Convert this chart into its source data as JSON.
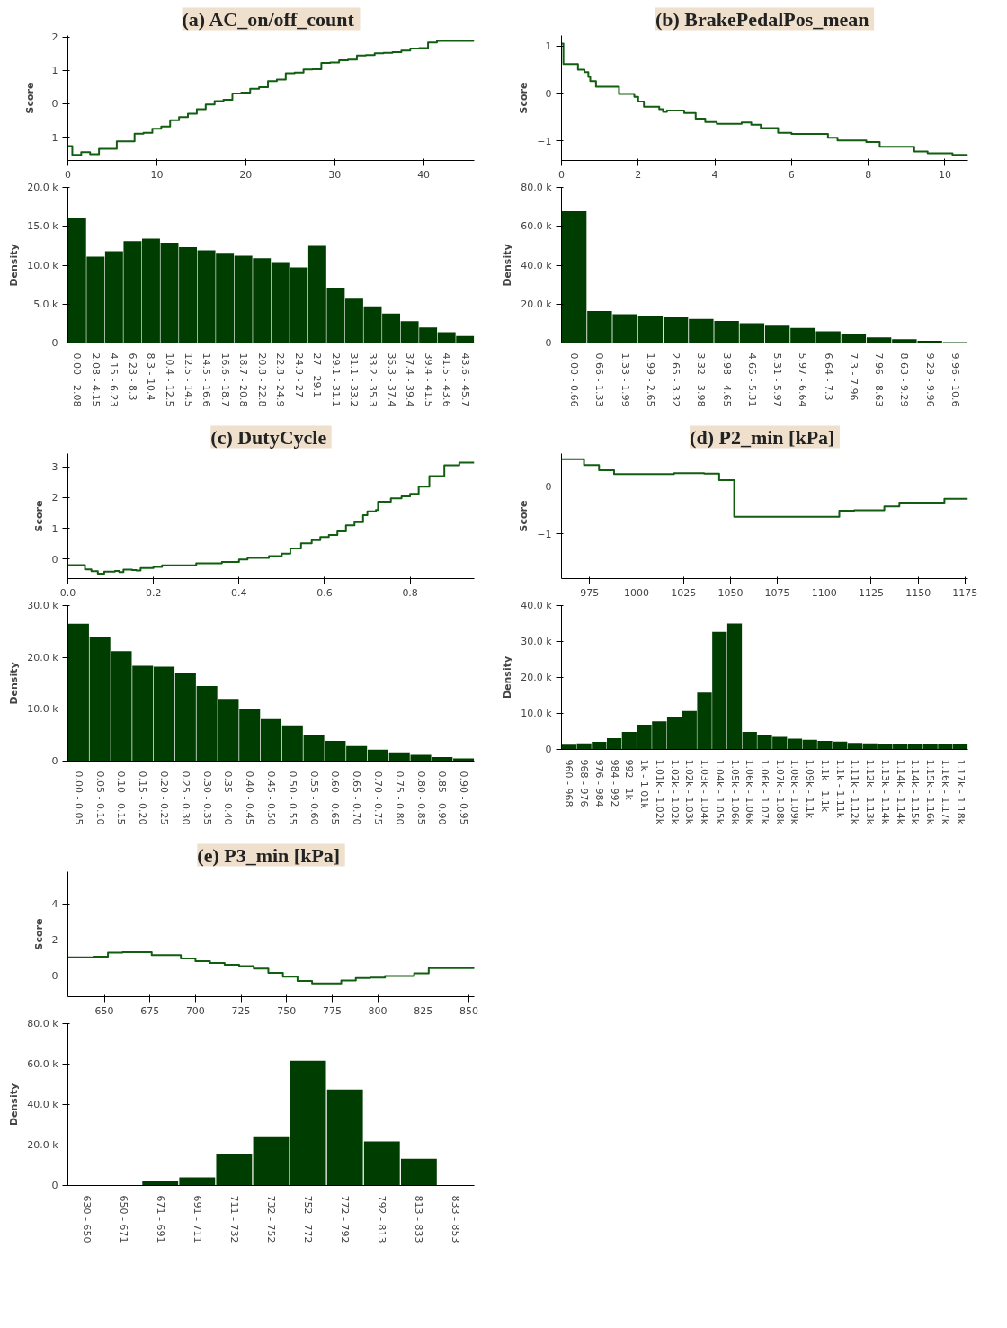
{
  "chart_data": [
    {
      "type": "step",
      "title": "(a)  AC_on/off_count",
      "ylabel": "Score",
      "color": "#115e11",
      "xlim": [
        0,
        45.7
      ],
      "xticks": [
        0,
        10,
        20,
        30,
        40
      ],
      "ylim": [
        -1.7,
        2.05
      ],
      "yticks": [
        {
          "value": -1,
          "label": "−1"
        },
        0,
        1,
        2
      ],
      "x": [
        0,
        0.5,
        1.5,
        2.5,
        3.5,
        5.5,
        7.5,
        8.5,
        9.5,
        10.5,
        11.5,
        12.5,
        13.5,
        14.5,
        15.5,
        16.5,
        17.5,
        18.5,
        19.5,
        20.5,
        21.5,
        22.5,
        23.5,
        24.5,
        25.5,
        26.5,
        27.5,
        28.5,
        29.5,
        30.5,
        31.5,
        32.5,
        33.5,
        34.5,
        35.5,
        36.5,
        37.5,
        38.5,
        39.5,
        40.5,
        41.5,
        45.7
      ],
      "values": [
        -1.27,
        -1.53,
        -1.45,
        -1.51,
        -1.35,
        -1.13,
        -0.9,
        -0.87,
        -0.75,
        -0.68,
        -0.49,
        -0.4,
        -0.3,
        -0.16,
        -0.02,
        0.08,
        0.12,
        0.31,
        0.34,
        0.45,
        0.5,
        0.68,
        0.73,
        0.92,
        0.94,
        1.03,
        1.04,
        1.23,
        1.24,
        1.31,
        1.33,
        1.45,
        1.46,
        1.52,
        1.53,
        1.55,
        1.6,
        1.66,
        1.67,
        1.84,
        1.89,
        1.89
      ]
    },
    {
      "type": "bar",
      "ylabel": "Density",
      "color": "#003d00",
      "ylim": [
        0,
        20000
      ],
      "yticks": [
        0,
        {
          "value": 5000,
          "label": "5.0 k"
        },
        {
          "value": 10000,
          "label": "10.0 k"
        },
        {
          "value": 15000,
          "label": "15.0 k"
        },
        {
          "value": 20000,
          "label": "20.0 k"
        }
      ],
      "categories": [
        "0.00 - 2.08",
        "2.08 - 4.15",
        "4.15 - 6.23",
        "6.23 - 8.3",
        "8.3 - 10.4",
        "10.4 - 12.5",
        "12.5 - 14.5",
        "14.5 - 16.6",
        "16.6 - 18.7",
        "18.7 - 20.8",
        "20.8 - 22.8",
        "22.8 - 24.9",
        "24.9 - 27",
        "27 - 29.1",
        "29.1 - 31.1",
        "31.1 - 33.2",
        "33.2 - 35.3",
        "35.3 - 37.4",
        "37.4 - 39.4",
        "39.4 - 41.5",
        "41.5 - 43.6",
        "43.6 - 45.7"
      ],
      "values": [
        16100,
        11100,
        11800,
        13100,
        13400,
        12900,
        12300,
        11900,
        11600,
        11200,
        10900,
        10400,
        9700,
        12500,
        7100,
        5800,
        4700,
        3800,
        2800,
        2000,
        1400,
        900
      ]
    },
    {
      "type": "step",
      "title": "(b)  BrakePedalPos_mean",
      "ylabel": "Score",
      "color": "#115e11",
      "xlim": [
        0,
        10.6
      ],
      "xticks": [
        0,
        2,
        4,
        6,
        8,
        10
      ],
      "ylim": [
        -1.41,
        1.22
      ],
      "yticks": [
        {
          "value": -1,
          "label": "−1"
        },
        0,
        1
      ],
      "x": [
        0,
        0.05,
        0.43,
        0.6,
        0.7,
        0.75,
        0.9,
        1.5,
        1.9,
        2.0,
        2.15,
        2.55,
        2.65,
        2.75,
        3.2,
        3.5,
        3.75,
        4.05,
        4.7,
        4.95,
        5.2,
        5.65,
        6.0,
        6.95,
        7.2,
        7.95,
        8.3,
        9.2,
        9.55,
        10.2,
        10.6
      ],
      "values": [
        1.05,
        0.62,
        0.5,
        0.45,
        0.35,
        0.26,
        0.14,
        -0.01,
        -0.07,
        -0.17,
        -0.28,
        -0.33,
        -0.39,
        -0.36,
        -0.41,
        -0.53,
        -0.6,
        -0.64,
        -0.61,
        -0.66,
        -0.73,
        -0.83,
        -0.85,
        -0.93,
        -0.99,
        -1.02,
        -1.12,
        -1.22,
        -1.26,
        -1.29,
        -1.29
      ]
    },
    {
      "type": "bar",
      "ylabel": "Density",
      "color": "#003d00",
      "ylim": [
        0,
        80000
      ],
      "yticks": [
        0,
        {
          "value": 20000,
          "label": "20.0 k"
        },
        {
          "value": 40000,
          "label": "40.0 k"
        },
        {
          "value": 60000,
          "label": "60.0 k"
        },
        {
          "value": 80000,
          "label": "80.0 k"
        }
      ],
      "categories": [
        "0.00 - 0.66",
        "0.66 - 1.33",
        "1.33 - 1.99",
        "1.99 - 2.65",
        "2.65 - 3.32",
        "3.32 - 3.98",
        "3.98 - 4.65",
        "4.65 - 5.31",
        "5.31 - 5.97",
        "5.97 - 6.64",
        "6.64 - 7.3",
        "7.3 - 7.96",
        "7.96 - 8.63",
        "8.63 - 9.29",
        "9.29 - 9.96",
        "9.96 - 10.6"
      ],
      "values": [
        67800,
        16400,
        14800,
        14100,
        13200,
        12400,
        11300,
        10200,
        8900,
        7700,
        6000,
        4400,
        2900,
        2000,
        1100,
        500
      ]
    },
    {
      "type": "step",
      "title": "(c)  DutyCycle",
      "ylabel": "Score",
      "color": "#115e11",
      "xlim": [
        0,
        0.95
      ],
      "xticks": [
        {
          "value": 0,
          "label": "0.0"
        },
        0.2,
        0.4,
        0.6,
        0.8
      ],
      "ylim": [
        -0.63,
        3.43
      ],
      "yticks": [
        0,
        1,
        2,
        3
      ],
      "x": [
        0,
        0.04,
        0.055,
        0.07,
        0.085,
        0.11,
        0.12,
        0.13,
        0.15,
        0.16,
        0.17,
        0.2,
        0.22,
        0.3,
        0.36,
        0.4,
        0.42,
        0.47,
        0.5,
        0.52,
        0.545,
        0.57,
        0.59,
        0.61,
        0.63,
        0.65,
        0.67,
        0.69,
        0.7,
        0.72,
        0.725,
        0.755,
        0.78,
        0.8,
        0.82,
        0.845,
        0.88,
        0.915,
        0.95
      ],
      "values": [
        -0.19,
        -0.33,
        -0.39,
        -0.47,
        -0.4,
        -0.38,
        -0.42,
        -0.34,
        -0.35,
        -0.37,
        -0.29,
        -0.25,
        -0.2,
        -0.13,
        -0.09,
        -0.01,
        0.04,
        0.1,
        0.18,
        0.35,
        0.52,
        0.62,
        0.72,
        0.79,
        0.9,
        1.1,
        1.2,
        1.43,
        1.55,
        1.6,
        1.87,
        1.98,
        2.04,
        2.12,
        2.36,
        2.7,
        3.05,
        3.14,
        3.14
      ]
    },
    {
      "type": "bar",
      "ylabel": "Density",
      "color": "#003d00",
      "ylim": [
        0,
        30000
      ],
      "yticks": [
        0,
        {
          "value": 10000,
          "label": "10.0 k"
        },
        {
          "value": 20000,
          "label": "20.0 k"
        },
        {
          "value": 30000,
          "label": "30.0 k"
        }
      ],
      "categories": [
        "0.00 - 0.05",
        "0.05 - 0.10",
        "0.10 - 0.15",
        "0.15 - 0.20",
        "0.20 - 0.25",
        "0.25 - 0.30",
        "0.30 - 0.35",
        "0.35 - 0.40",
        "0.40 - 0.45",
        "0.45 - 0.50",
        "0.50 - 0.55",
        "0.55 - 0.60",
        "0.60 - 0.65",
        "0.65 - 0.70",
        "0.70 - 0.75",
        "0.75 - 0.80",
        "0.80 - 0.85",
        "0.85 - 0.90",
        "0.90 - 0.95"
      ],
      "values": [
        26500,
        24000,
        21200,
        18400,
        18200,
        17000,
        14500,
        12000,
        10000,
        8100,
        6900,
        5100,
        3900,
        2900,
        2200,
        1700,
        1200,
        800,
        500
      ]
    },
    {
      "type": "step",
      "title": "(d)  P2_min [kPa]",
      "ylabel": "Score",
      "color": "#115e11",
      "xlim": [
        960,
        1176.5
      ],
      "xticks": [
        975,
        1000,
        1025,
        1050,
        1075,
        1100,
        1125,
        1150,
        1175
      ],
      "ylim": [
        -1.94,
        0.69
      ],
      "yticks": [
        {
          "value": -1,
          "label": "−1"
        },
        0
      ],
      "x": [
        960,
        972,
        980,
        988,
        1020,
        1036,
        1044,
        1052,
        1108,
        1116,
        1132,
        1140,
        1164,
        1176.5
      ],
      "values": [
        0.57,
        0.45,
        0.34,
        0.26,
        0.28,
        0.27,
        0.13,
        -0.64,
        -0.51,
        -0.5,
        -0.42,
        -0.34,
        -0.26,
        -0.26
      ]
    },
    {
      "type": "bar",
      "ylabel": "Density",
      "color": "#003d00",
      "ylim": [
        0,
        40000
      ],
      "yticks": [
        0,
        {
          "value": 10000,
          "label": "10.0 k"
        },
        {
          "value": 20000,
          "label": "20.0 k"
        },
        {
          "value": 30000,
          "label": "30.0 k"
        },
        {
          "value": 40000,
          "label": "40.0 k"
        }
      ],
      "categories": [
        "960 - 968",
        "968 - 976",
        "976 - 984",
        "984 - 992",
        "992 - 1k",
        "1k - 1.01k",
        "1.01k - 1.02k",
        "1.02k - 1.02k",
        "1.02k - 1.03k",
        "1.03k - 1.04k",
        "1.04k - 1.05k",
        "1.05k - 1.06k",
        "1.06k - 1.06k",
        "1.06k - 1.07k",
        "1.07k - 1.08k",
        "1.08k - 1.09k",
        "1.09k - 1.1k",
        "1.1k - 1.1k",
        "1.1k - 1.11k",
        "1.11k - 1.12k",
        "1.12k - 1.13k",
        "1.13k - 1.14k",
        "1.14k - 1.14k",
        "1.14k - 1.15k",
        "1.15k - 1.16k",
        "1.16k - 1.17k",
        "1.17k - 1.18k"
      ],
      "values": [
        1300,
        1700,
        2100,
        3100,
        4900,
        6900,
        7800,
        8900,
        10700,
        15800,
        32700,
        35000,
        4900,
        3900,
        3500,
        3000,
        2700,
        2400,
        2200,
        1800,
        1700,
        1600,
        1600,
        1500,
        1500,
        1500,
        1500
      ]
    },
    {
      "type": "step",
      "title": "(e)  P3_min [kPa]",
      "ylabel": "Score",
      "color": "#115e11",
      "xlim": [
        630,
        853
      ],
      "xticks": [
        650,
        675,
        700,
        725,
        750,
        775,
        800,
        825,
        850
      ],
      "ylim": [
        -1.18,
        5.8
      ],
      "yticks": [
        0,
        2,
        4
      ],
      "x": [
        630,
        644,
        652,
        660,
        676,
        692,
        700,
        708,
        716,
        724,
        732,
        740,
        748,
        756,
        764,
        780,
        788,
        796,
        804,
        820,
        828,
        853
      ],
      "values": [
        1.02,
        1.06,
        1.28,
        1.31,
        1.14,
        0.95,
        0.8,
        0.7,
        0.6,
        0.53,
        0.39,
        0.15,
        -0.06,
        -0.3,
        -0.44,
        -0.28,
        -0.14,
        -0.11,
        -0.02,
        0.12,
        0.41,
        0.38
      ]
    },
    {
      "type": "bar",
      "ylabel": "Density",
      "color": "#003d00",
      "ylim": [
        0,
        80000
      ],
      "yticks": [
        0,
        {
          "value": 20000,
          "label": "20.0 k"
        },
        {
          "value": 40000,
          "label": "40.0 k"
        },
        {
          "value": 60000,
          "label": "60.0 k"
        },
        {
          "value": 80000,
          "label": "80.0 k"
        }
      ],
      "categories": [
        "630 - 650",
        "650 - 671",
        "671 - 691",
        "691 - 711",
        "711 - 732",
        "732 - 752",
        "752 - 772",
        "772 - 792",
        "792 - 813",
        "813 - 833",
        "833 - 853"
      ],
      "values": [
        null,
        null,
        2000,
        4000,
        15400,
        23900,
        61700,
        47500,
        21800,
        13200,
        null
      ]
    }
  ]
}
